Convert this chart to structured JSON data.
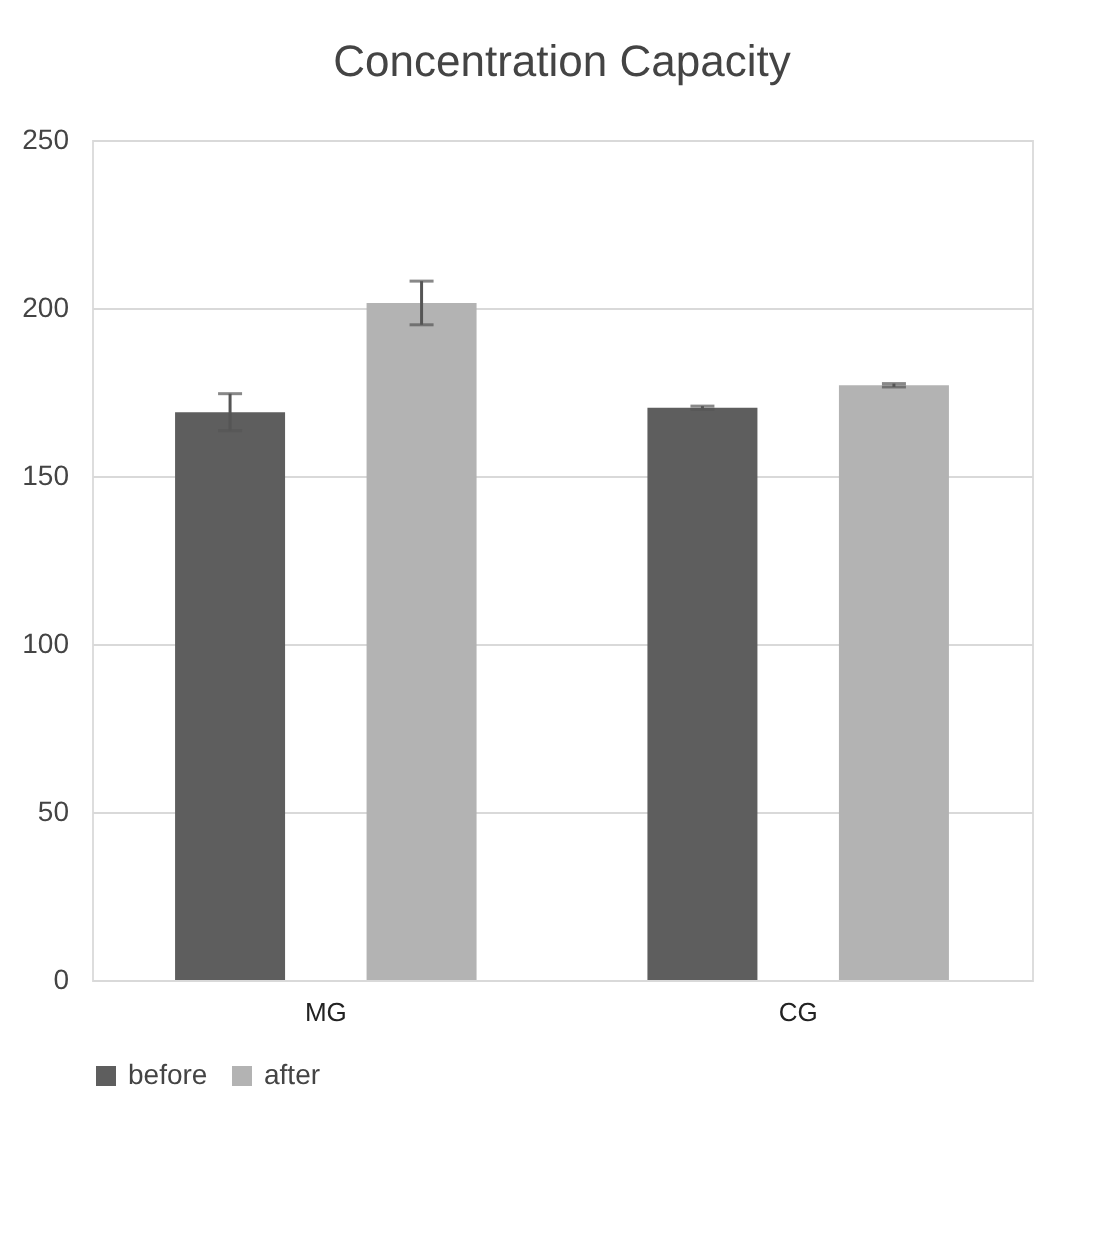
{
  "chart_data": {
    "type": "bar",
    "title": "Concentration Capacity",
    "categories": [
      "MG",
      "CG"
    ],
    "series": [
      {
        "name": "before",
        "color": "#5e5e5e",
        "values": [
          169,
          170.3
        ],
        "errors": [
          5.5,
          0.5
        ]
      },
      {
        "name": "after",
        "color": "#b3b3b3",
        "values": [
          201.5,
          177
        ],
        "errors": [
          6.5,
          0.5
        ]
      }
    ],
    "ylim": [
      0,
      250
    ],
    "yticks": [
      0,
      50,
      100,
      150,
      200,
      250
    ],
    "grid": "y",
    "legend": "bottom"
  }
}
